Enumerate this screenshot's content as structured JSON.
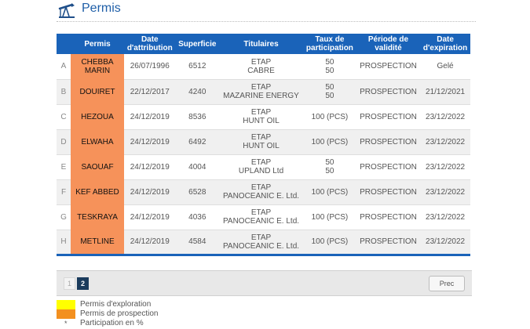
{
  "page": {
    "title": "Permis"
  },
  "table": {
    "headers": {
      "index": "",
      "permis": "Permis",
      "date_attr_1": "Date",
      "date_attr_2": "d'attribution",
      "superficie": "Superficie",
      "titulaires": "Titulaires",
      "taux_1": "Taux de",
      "taux_2": "participation",
      "periode_1": "Période de",
      "periode_2": "validité",
      "date_exp_1": "Date",
      "date_exp_2": "d'expiration"
    },
    "rows": [
      {
        "index": "A",
        "name_1": "CHEBBA",
        "name_2": "MARIN",
        "date_attr": "26/07/1996",
        "superficie": "6512",
        "tit_1": "ETAP",
        "tit_2": "CABRE",
        "taux_1": "50",
        "taux_2": "50",
        "periode": "PROSPECTION",
        "date_exp": "Gelé"
      },
      {
        "index": "B",
        "name_1": "DOUIRET",
        "name_2": "",
        "date_attr": "22/12/2017",
        "superficie": "4240",
        "tit_1": "ETAP",
        "tit_2": "MAZARINE ENERGY",
        "taux_1": "50",
        "taux_2": "50",
        "periode": "PROSPECTION",
        "date_exp": "21/12/2021"
      },
      {
        "index": "C",
        "name_1": "HEZOUA",
        "name_2": "",
        "date_attr": "24/12/2019",
        "superficie": "8536",
        "tit_1": "ETAP",
        "tit_2": "HUNT OIL",
        "taux_1": "100 (PCS)",
        "taux_2": "",
        "periode": "PROSPECTION",
        "date_exp": "23/12/2022"
      },
      {
        "index": "D",
        "name_1": "ELWAHA",
        "name_2": "",
        "date_attr": "24/12/2019",
        "superficie": "6492",
        "tit_1": "ETAP",
        "tit_2": "HUNT OIL",
        "taux_1": "100 (PCS)",
        "taux_2": "",
        "periode": "PROSPECTION",
        "date_exp": "23/12/2022"
      },
      {
        "index": "E",
        "name_1": "SAOUAF",
        "name_2": "",
        "date_attr": "24/12/2019",
        "superficie": "4004",
        "tit_1": "ETAP",
        "tit_2": "UPLAND Ltd",
        "taux_1": "50",
        "taux_2": "50",
        "periode": "PROSPECTION",
        "date_exp": "23/12/2022"
      },
      {
        "index": "F",
        "name_1": "KEF ABBED",
        "name_2": "",
        "date_attr": "24/12/2019",
        "superficie": "6528",
        "tit_1": "ETAP",
        "tit_2": "PANOCEANIC E. Ltd.",
        "taux_1": "100 (PCS)",
        "taux_2": "",
        "periode": "PROSPECTION",
        "date_exp": "23/12/2022"
      },
      {
        "index": "G",
        "name_1": "TESKRAYA",
        "name_2": "",
        "date_attr": "24/12/2019",
        "superficie": "4036",
        "tit_1": "ETAP",
        "tit_2": "PANOCEANIC E. Ltd.",
        "taux_1": "100 (PCS)",
        "taux_2": "",
        "periode": "PROSPECTION",
        "date_exp": "23/12/2022"
      },
      {
        "index": "H",
        "name_1": "METLINE",
        "name_2": "",
        "date_attr": "24/12/2019",
        "superficie": "4584",
        "tit_1": "ETAP",
        "tit_2": "PANOCEANIC E. Ltd.",
        "taux_1": "100 (PCS)",
        "taux_2": "",
        "periode": "PROSPECTION",
        "date_exp": "23/12/2022"
      }
    ]
  },
  "pager": {
    "page_1": "1",
    "page_2": "2",
    "current_page": "2",
    "prev_label": "Prec"
  },
  "legend": {
    "exploration": "Permis d'exploration",
    "prospection": "Permis de prospection",
    "participation": "Participation en %",
    "star": "*"
  },
  "colors": {
    "header_blue": "#1a63b9",
    "prospection_orange": "#f6925a",
    "legend_yellow": "#ffff00",
    "legend_orange": "#f3901f"
  },
  "icons": {
    "title": "oil-pump-icon"
  }
}
